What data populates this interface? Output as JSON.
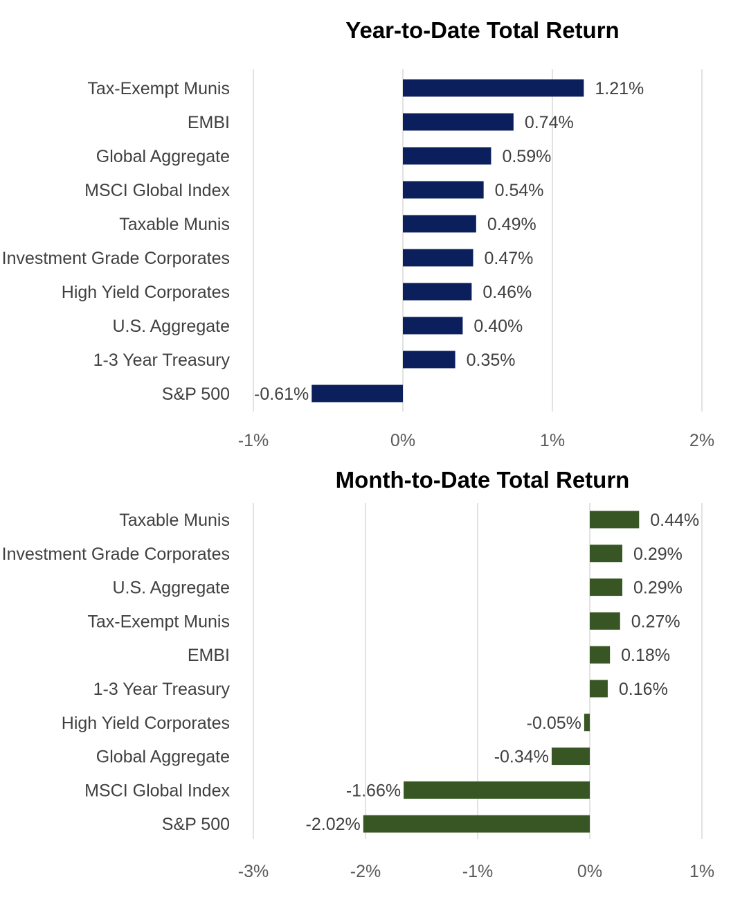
{
  "chart_data": [
    {
      "type": "bar",
      "orientation": "horizontal",
      "title": "Year-to-Date Total Return",
      "categories": [
        "Tax-Exempt Munis",
        "EMBI",
        "Global Aggregate",
        "MSCI Global Index",
        "Taxable Munis",
        "Investment Grade Corporates",
        "High Yield Corporates",
        "U.S. Aggregate",
        "1-3 Year Treasury",
        "S&P 500"
      ],
      "values": [
        1.21,
        0.74,
        0.59,
        0.54,
        0.49,
        0.47,
        0.46,
        0.4,
        0.35,
        -0.61
      ],
      "value_labels": [
        "1.21%",
        "0.74%",
        "0.59%",
        "0.54%",
        "0.49%",
        "0.47%",
        "0.46%",
        "0.40%",
        "0.35%",
        "-0.61%"
      ],
      "xlim": [
        -1,
        2
      ],
      "ticks": [
        -1,
        0,
        1,
        2
      ],
      "tick_labels": [
        "-1%",
        "0%",
        "1%",
        "2%"
      ],
      "bar_color": "#0b1f5c",
      "grid": true
    },
    {
      "type": "bar",
      "orientation": "horizontal",
      "title": "Month-to-Date Total Return",
      "categories": [
        "Taxable Munis",
        "Investment Grade Corporates",
        "U.S. Aggregate",
        "Tax-Exempt Munis",
        "EMBI",
        "1-3 Year Treasury",
        "High Yield Corporates",
        "Global Aggregate",
        "MSCI Global Index",
        "S&P 500"
      ],
      "values": [
        0.44,
        0.29,
        0.29,
        0.27,
        0.18,
        0.16,
        -0.05,
        -0.34,
        -1.66,
        -2.02
      ],
      "value_labels": [
        "0.44%",
        "0.29%",
        "0.29%",
        "0.27%",
        "0.18%",
        "0.16%",
        "-0.05%",
        "-0.34%",
        "-1.66%",
        "-2.02%"
      ],
      "xlim": [
        -3,
        1
      ],
      "ticks": [
        -3,
        -2,
        -1,
        0,
        1
      ],
      "tick_labels": [
        "-3%",
        "-2%",
        "-1%",
        "0%",
        "1%"
      ],
      "bar_color": "#375623",
      "grid": true
    }
  ]
}
